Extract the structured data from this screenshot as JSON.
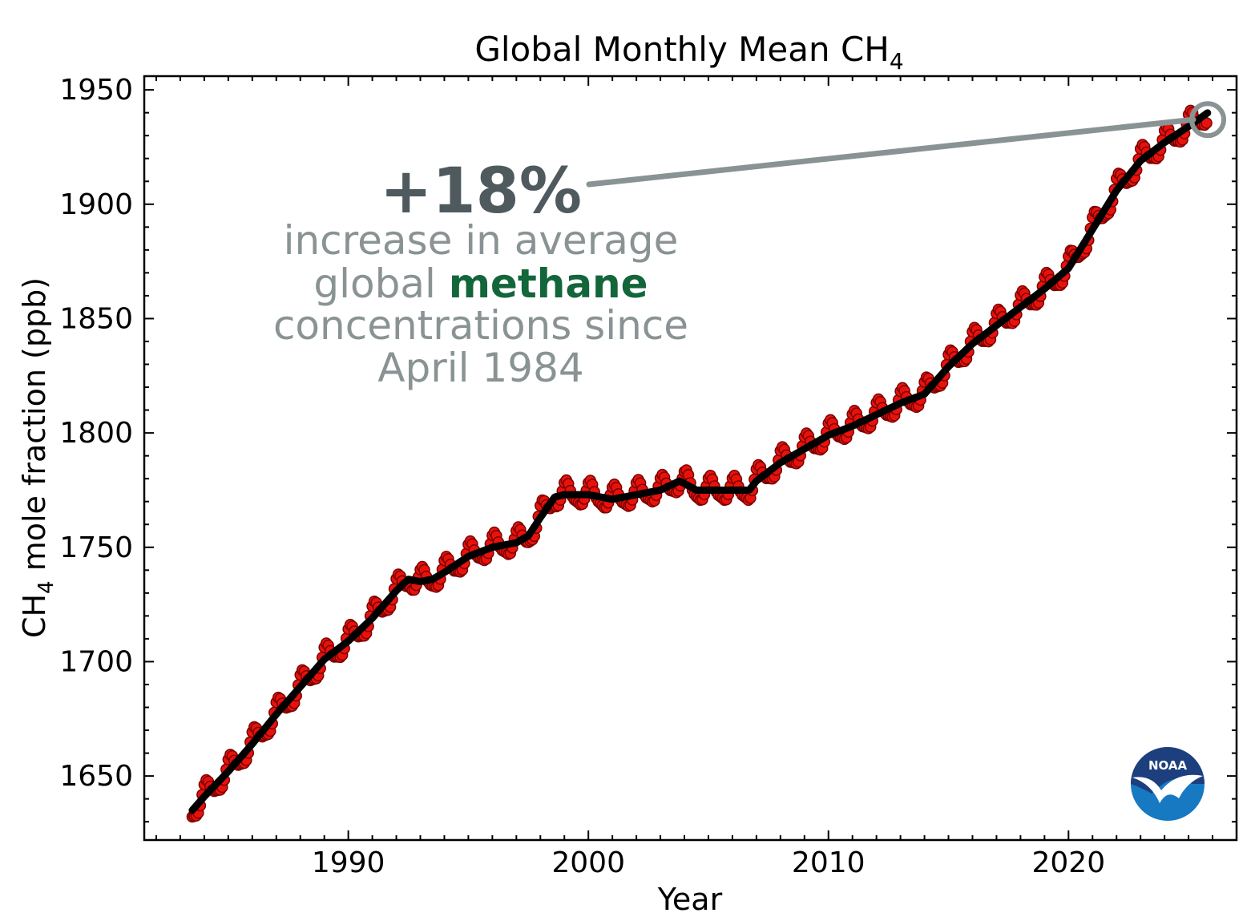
{
  "chart_data": {
    "type": "line",
    "title": "Global Monthly Mean CH",
    "title_subscript": "4",
    "xlabel": "Year",
    "ylabel_prefix": "CH",
    "ylabel_subscript": "4",
    "ylabel_suffix": " mole fraction (ppb)",
    "xlim": [
      1981.5,
      2027.0
    ],
    "ylim": [
      1622,
      1956
    ],
    "x_ticks": [
      1990,
      2000,
      2010,
      2020
    ],
    "y_ticks": [
      1650,
      1700,
      1750,
      1800,
      1850,
      1900,
      1950
    ],
    "grid": false,
    "colors": {
      "monthly": "#e8120c",
      "monthly_edge": "#7a0000",
      "trend": "#000000",
      "annotation_line": "#8a9394"
    },
    "annotation": {
      "headline": "+18%",
      "lines": [
        "increase in average",
        "global ",
        "methane",
        "concentrations since",
        "April 1984"
      ],
      "target_year": 2025.8,
      "target_value": 1937
    },
    "series": [
      {
        "role": "trend",
        "x": [
          1983.5,
          1984,
          1985,
          1986,
          1987,
          1988,
          1989,
          1990,
          1991,
          1992,
          1992.5,
          1993,
          1993.5,
          1994,
          1995,
          1996,
          1997,
          1997.5,
          1998,
          1998.6,
          1999,
          2000,
          2001,
          2002,
          2003,
          2003.8,
          2004.5,
          2005,
          2006,
          2006.7,
          2007,
          2008,
          2009,
          2010,
          2011,
          2012,
          2013,
          2014,
          2015,
          2016,
          2017,
          2018,
          2019,
          2020,
          2021,
          2022,
          2023,
          2024,
          2025,
          2025.8
        ],
        "values": [
          1635,
          1641,
          1652,
          1664,
          1677,
          1689,
          1701,
          1709,
          1719,
          1731,
          1736,
          1735,
          1736,
          1739,
          1746,
          1750,
          1752,
          1755,
          1763,
          1772,
          1773,
          1773,
          1771,
          1773,
          1775,
          1779,
          1775,
          1775,
          1775,
          1775,
          1779,
          1787,
          1793,
          1799,
          1803,
          1808,
          1813,
          1817,
          1829,
          1839,
          1847,
          1855,
          1863,
          1872,
          1889,
          1906,
          1919,
          1927,
          1934,
          1940
        ]
      }
    ],
    "monthly_seasonal_amplitude": 5
  },
  "logo": {
    "text": "NOAA"
  }
}
